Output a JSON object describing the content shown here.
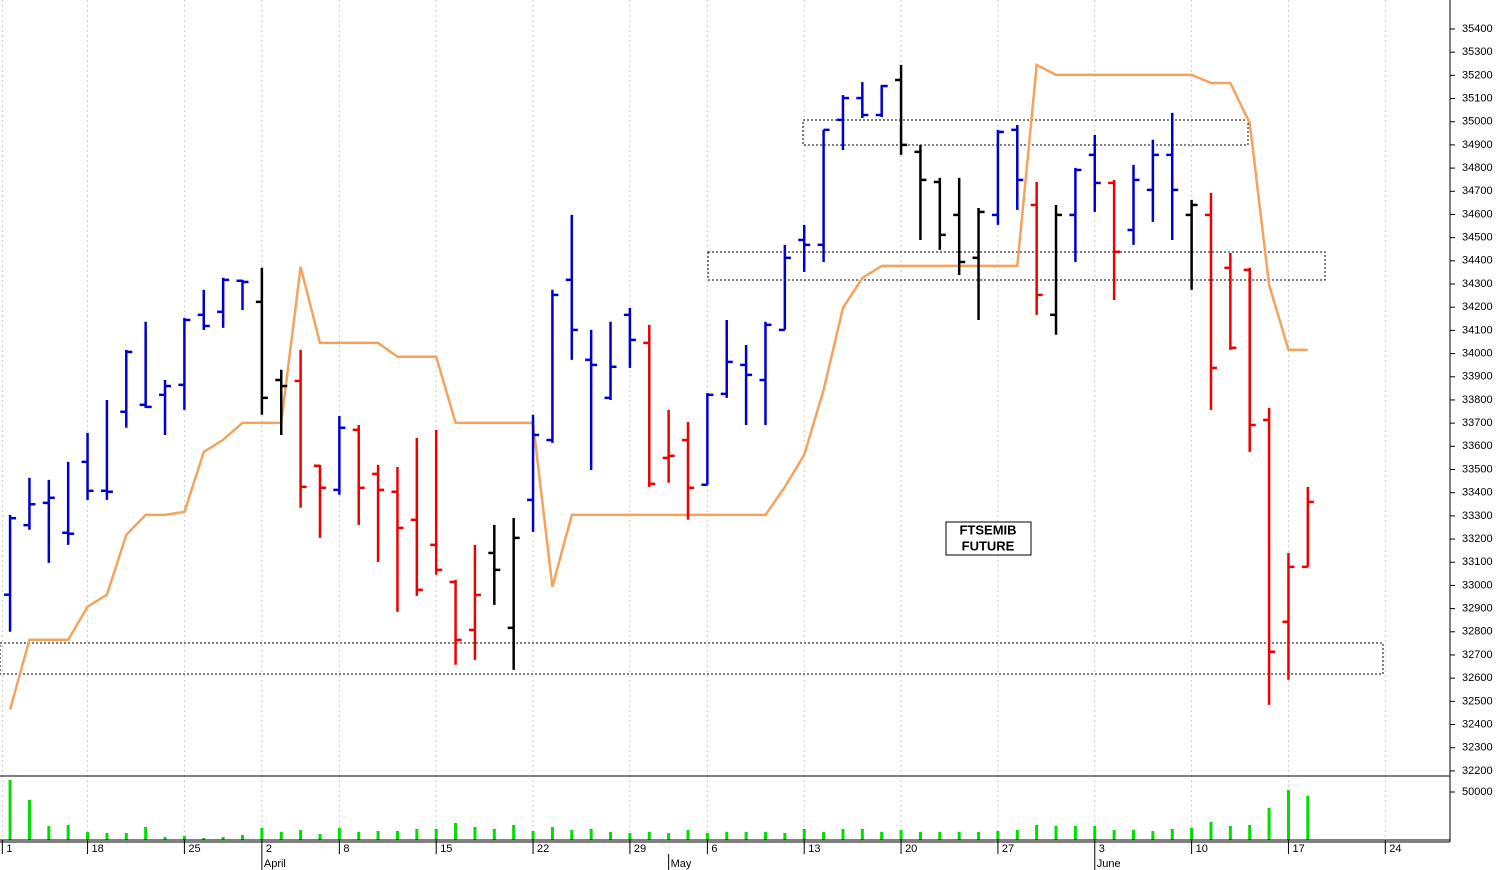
{
  "chart_data": [
    {
      "type": "ohlc",
      "annotation": [
        "FTSEMIB",
        "FUTURE"
      ],
      "x": [
        0,
        1,
        2,
        3,
        4,
        5,
        6,
        7,
        8,
        9,
        10,
        11,
        12,
        13,
        14,
        15,
        16,
        17,
        18,
        19,
        20,
        21,
        22,
        23,
        24,
        25,
        26,
        27,
        28,
        29,
        30,
        31,
        32,
        33,
        34,
        35,
        36,
        37,
        38,
        39,
        40,
        41,
        42,
        43,
        44,
        45,
        46,
        47,
        48,
        49,
        50,
        51,
        52,
        53,
        54,
        55,
        56,
        57,
        58,
        59,
        60,
        61,
        62,
        63,
        64,
        65,
        66,
        67
      ],
      "open": [
        32960,
        33260,
        33356,
        33227,
        33533,
        33408,
        33749,
        33779,
        33822,
        33865,
        34167,
        34180,
        34314,
        34223,
        33886,
        33882,
        33516,
        33412,
        33671,
        33481,
        33404,
        33283,
        33175,
        33015,
        32808,
        33140,
        32817,
        33369,
        33627,
        34318,
        33973,
        33809,
        34167,
        34046,
        33550,
        33627,
        33434,
        33826,
        33951,
        33886,
        34102,
        34490,
        34469,
        35008,
        35102,
        35029,
        35180,
        34870,
        34740,
        34598,
        34413,
        34598,
        34965,
        34641,
        34167,
        34598,
        34857,
        34736,
        34533,
        34706,
        34857,
        34598,
        34598,
        34370,
        34361,
        33714,
        32843,
        33080
      ],
      "high": [
        33304,
        33464,
        33455,
        33533,
        33658,
        33800,
        34016,
        34137,
        33886,
        34154,
        34275,
        34327,
        34318,
        34370,
        33930,
        34016,
        33520,
        33731,
        33692,
        33520,
        33511,
        33636,
        33671,
        33024,
        33175,
        33261,
        33291,
        33736,
        34275,
        34598,
        34102,
        34137,
        34197,
        34124,
        33757,
        33705,
        33830,
        34145,
        34037,
        34137,
        34469,
        34555,
        34965,
        35115,
        35171,
        35158,
        35245,
        34900,
        34758,
        34758,
        34628,
        34965,
        34986,
        34740,
        34641,
        34801,
        34943,
        34749,
        34814,
        34922,
        35038,
        34663,
        34693,
        34434,
        34370,
        33766,
        33140,
        33425
      ],
      "low": [
        32800,
        33240,
        33097,
        33175,
        33369,
        33369,
        33680,
        33766,
        33649,
        33757,
        34102,
        34111,
        34188,
        33736,
        33649,
        33335,
        33205,
        33391,
        33261,
        33101,
        32886,
        32955,
        33046,
        32658,
        32679,
        32916,
        32636,
        33231,
        33615,
        33973,
        33498,
        33800,
        33938,
        33425,
        33443,
        33283,
        33434,
        33809,
        33692,
        33692,
        34102,
        34352,
        34395,
        34878,
        35016,
        35020,
        34857,
        34490,
        34447,
        34339,
        34145,
        34555,
        34620,
        34167,
        34081,
        34395,
        34611,
        34231,
        34469,
        34568,
        34490,
        34275,
        33757,
        34016,
        33576,
        32485,
        32593,
        33080
      ],
      "close": [
        33290,
        33350,
        33378,
        33223,
        33408,
        33404,
        34007,
        33770,
        33860,
        34145,
        34119,
        34318,
        34309,
        33809,
        33860,
        33425,
        33421,
        33680,
        33421,
        33412,
        33248,
        32981,
        33067,
        32765,
        32959,
        33067,
        33205,
        33649,
        34253,
        34102,
        33951,
        33943,
        34059,
        33438,
        33559,
        33421,
        33822,
        33964,
        33908,
        34124,
        34413,
        34469,
        34965,
        35102,
        35029,
        35154,
        34900,
        34749,
        34512,
        34395,
        34611,
        34956,
        34749,
        34253,
        34598,
        34792,
        34736,
        34439,
        34749,
        34857,
        34706,
        34641,
        33938,
        34025,
        33692,
        32714,
        33080,
        33360
      ],
      "bar_colors": [
        "#0000cc",
        "#0000cc",
        "#0000cc",
        "#0000cc",
        "#0000cc",
        "#0000cc",
        "#0000cc",
        "#0000cc",
        "#0000cc",
        "#0000cc",
        "#0000cc",
        "#0000cc",
        "#0000cc",
        "#000000",
        "#000000",
        "#ee0000",
        "#ee0000",
        "#0000cc",
        "#ee0000",
        "#ee0000",
        "#ee0000",
        "#ee0000",
        "#ee0000",
        "#ee0000",
        "#ee0000",
        "#000000",
        "#000000",
        "#0000cc",
        "#0000cc",
        "#0000cc",
        "#0000cc",
        "#0000cc",
        "#0000cc",
        "#ee0000",
        "#ee0000",
        "#ee0000",
        "#0000cc",
        "#0000cc",
        "#0000cc",
        "#0000cc",
        "#0000cc",
        "#0000cc",
        "#0000cc",
        "#0000cc",
        "#0000cc",
        "#0000cc",
        "#000000",
        "#000000",
        "#000000",
        "#000000",
        "#000000",
        "#0000cc",
        "#0000cc",
        "#ee0000",
        "#000000",
        "#0000cc",
        "#0000cc",
        "#ee0000",
        "#0000cc",
        "#0000cc",
        "#0000cc",
        "#000000",
        "#ee0000",
        "#ee0000",
        "#ee0000",
        "#ee0000",
        "#ee0000",
        "#ee0000"
      ],
      "overlay": {
        "color": "#f5a35c",
        "values": [
          32464,
          32766,
          32766,
          32766,
          32908,
          32960,
          33218,
          33304,
          33304,
          33317,
          33576,
          33628,
          33701,
          33701,
          33701,
          34374,
          34046,
          34046,
          34046,
          34046,
          33986,
          33986,
          33986,
          33701,
          33701,
          33701,
          33701,
          33701,
          32994,
          33304,
          33304,
          33304,
          33304,
          33304,
          33304,
          33304,
          33304,
          33304,
          33304,
          33304,
          33425,
          33563,
          33843,
          34197,
          34326,
          34378,
          34378,
          34378,
          34378,
          34378,
          34378,
          34378,
          34378,
          35245,
          35202,
          35202,
          35202,
          35202,
          35202,
          35202,
          35202,
          35202,
          35167,
          35167,
          34995,
          34296,
          34016,
          34016
        ]
      },
      "xlim": [
        -0.52,
        74.34
      ],
      "ylim": [
        32178,
        35525
      ],
      "yticks": [
        32200,
        32300,
        32400,
        32500,
        32600,
        32700,
        32800,
        32900,
        33000,
        33100,
        33200,
        33300,
        33400,
        33500,
        33600,
        33700,
        33800,
        33900,
        34000,
        34100,
        34200,
        34300,
        34400,
        34500,
        34600,
        34700,
        34800,
        34900,
        35000,
        35100,
        35200,
        35300,
        35400
      ],
      "xticks": [
        {
          "value": -0.4,
          "label": "1"
        },
        {
          "value": 4,
          "label": "18"
        },
        {
          "value": 9,
          "label": "25"
        },
        {
          "value": 13,
          "label": "2"
        },
        {
          "value": 17,
          "label": "8"
        },
        {
          "value": 22,
          "label": "15"
        },
        {
          "value": 27,
          "label": "22"
        },
        {
          "value": 32,
          "label": "29"
        },
        {
          "value": 36,
          "label": "6"
        },
        {
          "value": 41,
          "label": "13"
        },
        {
          "value": 46,
          "label": "20"
        },
        {
          "value": 51,
          "label": "27"
        },
        {
          "value": 56,
          "label": "3"
        },
        {
          "value": 61,
          "label": "10"
        },
        {
          "value": 66,
          "label": "17"
        },
        {
          "value": 71,
          "label": "24"
        }
      ],
      "month_ticks": [
        {
          "value": 13,
          "label": "April"
        },
        {
          "value": 34,
          "label": "May"
        },
        {
          "value": 56,
          "label": "June"
        }
      ]
    },
    {
      "type": "bar",
      "color": "#00dd00",
      "values": [
        62500,
        41667,
        14583,
        15625,
        8333,
        7292,
        7292,
        13542,
        3125,
        4167,
        2083,
        3125,
        5208,
        12500,
        8333,
        10417,
        6250,
        12500,
        8333,
        9375,
        9375,
        11458,
        11458,
        17708,
        13542,
        11458,
        15625,
        9375,
        13542,
        10417,
        11458,
        8333,
        7292,
        8333,
        7292,
        10417,
        7292,
        8333,
        8333,
        8333,
        7292,
        11458,
        8333,
        11458,
        11458,
        8333,
        10417,
        8333,
        8333,
        8333,
        8333,
        9375,
        10417,
        15625,
        14583,
        14583,
        14583,
        10417,
        10417,
        9375,
        11458,
        12500,
        18750,
        14583,
        15625,
        33333,
        52083,
        45833
      ],
      "ylim": [
        0,
        66667
      ],
      "yticks": [
        50000
      ]
    }
  ]
}
